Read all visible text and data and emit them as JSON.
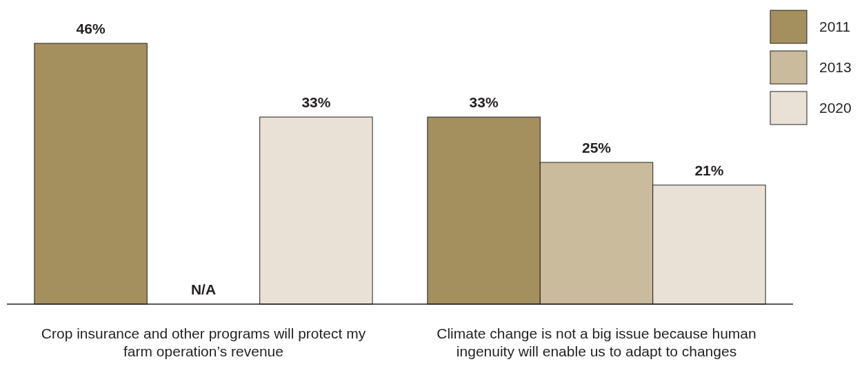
{
  "chart_data": {
    "type": "bar",
    "categories": [
      "Crop insurance and other programs will protect my farm operation’s revenue",
      "Climate change is not a big issue because human ingenuity will enable us to adapt to changes"
    ],
    "series": [
      {
        "name": "2011",
        "color": "#a48f5e",
        "values": [
          46,
          33
        ],
        "value_labels": [
          "46%",
          "33%"
        ]
      },
      {
        "name": "2013",
        "color": "#c9bb9b",
        "values": [
          null,
          25
        ],
        "value_labels": [
          "N/A",
          "25%"
        ]
      },
      {
        "name": "2020",
        "color": "#eae1d6",
        "values": [
          33,
          21
        ],
        "value_labels": [
          "33%",
          "21%"
        ]
      }
    ],
    "legend": "top right"
  }
}
